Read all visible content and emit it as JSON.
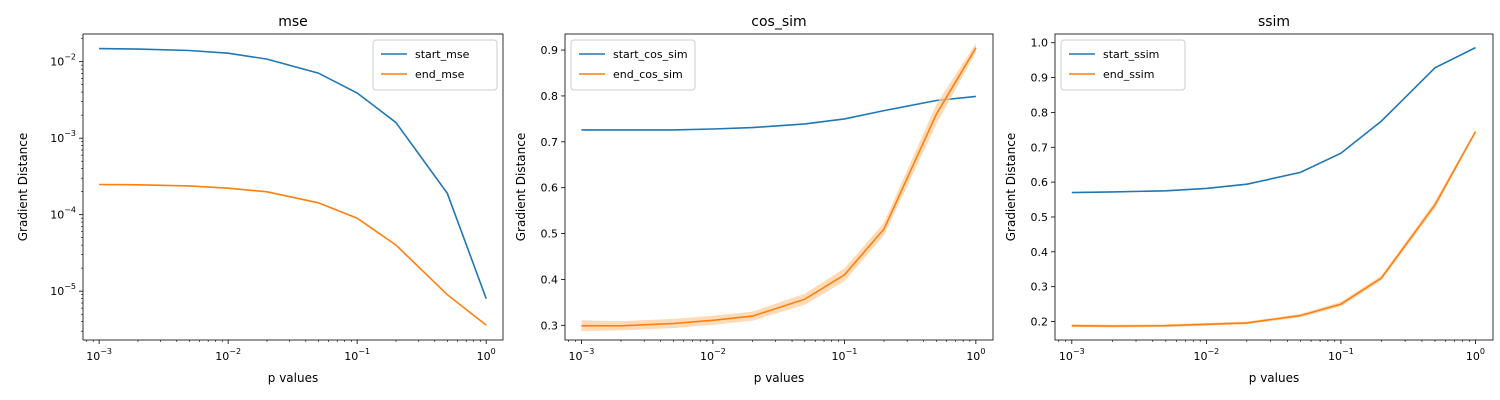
{
  "colors": {
    "start": "#1f77b4",
    "end": "#ff7f0e",
    "band": "#ffcc99"
  },
  "chart_data": [
    {
      "type": "line",
      "title": "mse",
      "xlabel": "p values",
      "ylabel": "Gradient Distance",
      "xscale": "log",
      "yscale": "log",
      "xlim": [
        0.00075,
        1.35
      ],
      "ylim": [
        2.3e-06,
        0.023
      ],
      "xticks": [
        0.001,
        0.01,
        0.1,
        1
      ],
      "xtick_labels": [
        {
          "base": "10",
          "exp": "−3"
        },
        {
          "base": "10",
          "exp": "−2"
        },
        {
          "base": "10",
          "exp": "−1"
        },
        {
          "base": "10",
          "exp": "0"
        }
      ],
      "yticks": [
        1e-05,
        0.0001,
        0.001,
        0.01
      ],
      "ytick_labels": [
        {
          "base": "10",
          "exp": "−5"
        },
        {
          "base": "10",
          "exp": "−4"
        },
        {
          "base": "10",
          "exp": "−3"
        },
        {
          "base": "10",
          "exp": "−2"
        }
      ],
      "legend": "top-right",
      "x": [
        0.001,
        0.002,
        0.005,
        0.01,
        0.02,
        0.05,
        0.1,
        0.2,
        0.5,
        1
      ],
      "series": [
        {
          "name": "start_mse",
          "values": [
            0.0148,
            0.0146,
            0.014,
            0.0129,
            0.0108,
            0.0071,
            0.0039,
            0.0016,
            0.00019,
            8e-06
          ]
        },
        {
          "name": "end_mse",
          "values": [
            0.000248,
            0.000246,
            0.000238,
            0.000222,
            0.000199,
            0.000143,
            9e-05,
            4e-05,
            9e-06,
            3.6e-06
          ]
        }
      ]
    },
    {
      "type": "line",
      "title": "cos_sim",
      "xlabel": "p values",
      "ylabel": "Gradient Distance",
      "xscale": "log",
      "yscale": "linear",
      "xlim": [
        0.00075,
        1.35
      ],
      "ylim": [
        0.268,
        0.935
      ],
      "xticks": [
        0.001,
        0.01,
        0.1,
        1
      ],
      "xtick_labels": [
        {
          "base": "10",
          "exp": "−3"
        },
        {
          "base": "10",
          "exp": "−2"
        },
        {
          "base": "10",
          "exp": "−1"
        },
        {
          "base": "10",
          "exp": "0"
        }
      ],
      "yticks": [
        0.3,
        0.4,
        0.5,
        0.6,
        0.7,
        0.8,
        0.9
      ],
      "ytick_labels": [
        "0.3",
        "0.4",
        "0.5",
        "0.6",
        "0.7",
        "0.8",
        "0.9"
      ],
      "legend": "top-left",
      "x": [
        0.001,
        0.002,
        0.005,
        0.01,
        0.02,
        0.05,
        0.1,
        0.2,
        0.5,
        1
      ],
      "series": [
        {
          "name": "start_cos_sim",
          "values": [
            0.726,
            0.726,
            0.726,
            0.728,
            0.731,
            0.739,
            0.75,
            0.768,
            0.79,
            0.799
          ]
        },
        {
          "name": "end_cos_sim",
          "values": [
            0.299,
            0.299,
            0.304,
            0.311,
            0.32,
            0.357,
            0.41,
            0.51,
            0.76,
            0.905
          ],
          "band": [
            0.012,
            0.01,
            0.01,
            0.01,
            0.01,
            0.012,
            0.014,
            0.014,
            0.022,
            0.01
          ]
        }
      ]
    },
    {
      "type": "line",
      "title": "ssim",
      "xlabel": "p values",
      "ylabel": "Gradient Distance",
      "xscale": "log",
      "yscale": "linear",
      "xlim": [
        0.00075,
        1.35
      ],
      "ylim": [
        0.147,
        1.025
      ],
      "xticks": [
        0.001,
        0.01,
        0.1,
        1
      ],
      "xtick_labels": [
        {
          "base": "10",
          "exp": "−3"
        },
        {
          "base": "10",
          "exp": "−2"
        },
        {
          "base": "10",
          "exp": "−1"
        },
        {
          "base": "10",
          "exp": "0"
        }
      ],
      "yticks": [
        0.2,
        0.3,
        0.4,
        0.5,
        0.6,
        0.7,
        0.8,
        0.9,
        1.0
      ],
      "ytick_labels": [
        "0.2",
        "0.3",
        "0.4",
        "0.5",
        "0.6",
        "0.7",
        "0.8",
        "0.9",
        "1.0"
      ],
      "legend": "top-left",
      "x": [
        0.001,
        0.002,
        0.005,
        0.01,
        0.02,
        0.05,
        0.1,
        0.2,
        0.5,
        1
      ],
      "series": [
        {
          "name": "start_ssim",
          "values": [
            0.57,
            0.572,
            0.575,
            0.582,
            0.594,
            0.628,
            0.683,
            0.775,
            0.928,
            0.986
          ]
        },
        {
          "name": "end_ssim",
          "values": [
            0.188,
            0.187,
            0.188,
            0.192,
            0.196,
            0.217,
            0.25,
            0.325,
            0.535,
            0.745
          ],
          "band": [
            0.004,
            0.004,
            0.004,
            0.004,
            0.004,
            0.005,
            0.007,
            0.007,
            0.01,
            0.005
          ]
        }
      ]
    }
  ]
}
